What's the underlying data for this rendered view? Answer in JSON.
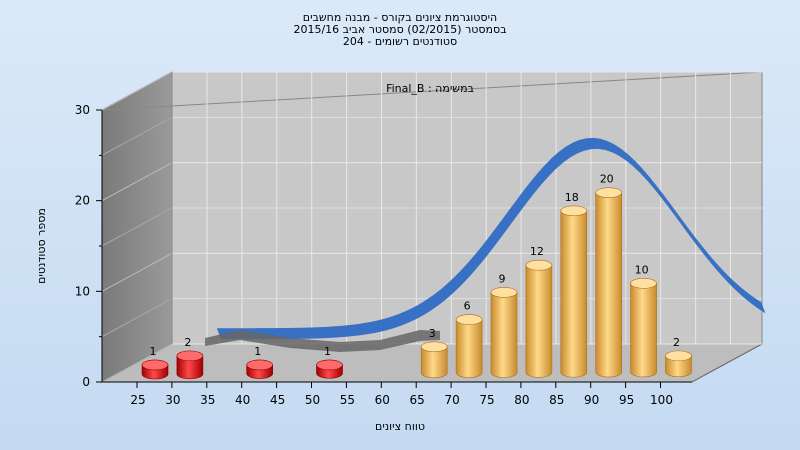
{
  "header": {
    "title_line1": "היסטוגרמת ציונים בקורס - מבנה מחשבים",
    "title_line2": "בסמסטר  (02/2015)  סמסטר אביב 2015/16",
    "title_line3": "סטודנטים רשומים - 204"
  },
  "chart_data": {
    "type": "bar",
    "title": "Final_B : במשימה",
    "xlabel": "טווח ציונים",
    "ylabel": "מספר סטודנטים",
    "ylim": [
      0,
      30
    ],
    "yticks": [
      0,
      10,
      20,
      30
    ],
    "xticks": [
      "25",
      "30",
      "35",
      "40",
      "45",
      "50",
      "55",
      "60",
      "65",
      "70",
      "75",
      "80",
      "85",
      "90",
      "95",
      "100"
    ],
    "categories": [
      "25",
      "30",
      "35",
      "40",
      "45",
      "50",
      "55",
      "60",
      "65",
      "70",
      "75",
      "80",
      "85",
      "90",
      "95",
      "100"
    ],
    "values": [
      1,
      2,
      0,
      1,
      0,
      1,
      0,
      0,
      3,
      6,
      9,
      12,
      18,
      20,
      10,
      2
    ],
    "bar_colors": {
      "fail": "#e01010",
      "pass": "#f0b050"
    },
    "curve_color": "#2f6cc4",
    "grid": true
  }
}
